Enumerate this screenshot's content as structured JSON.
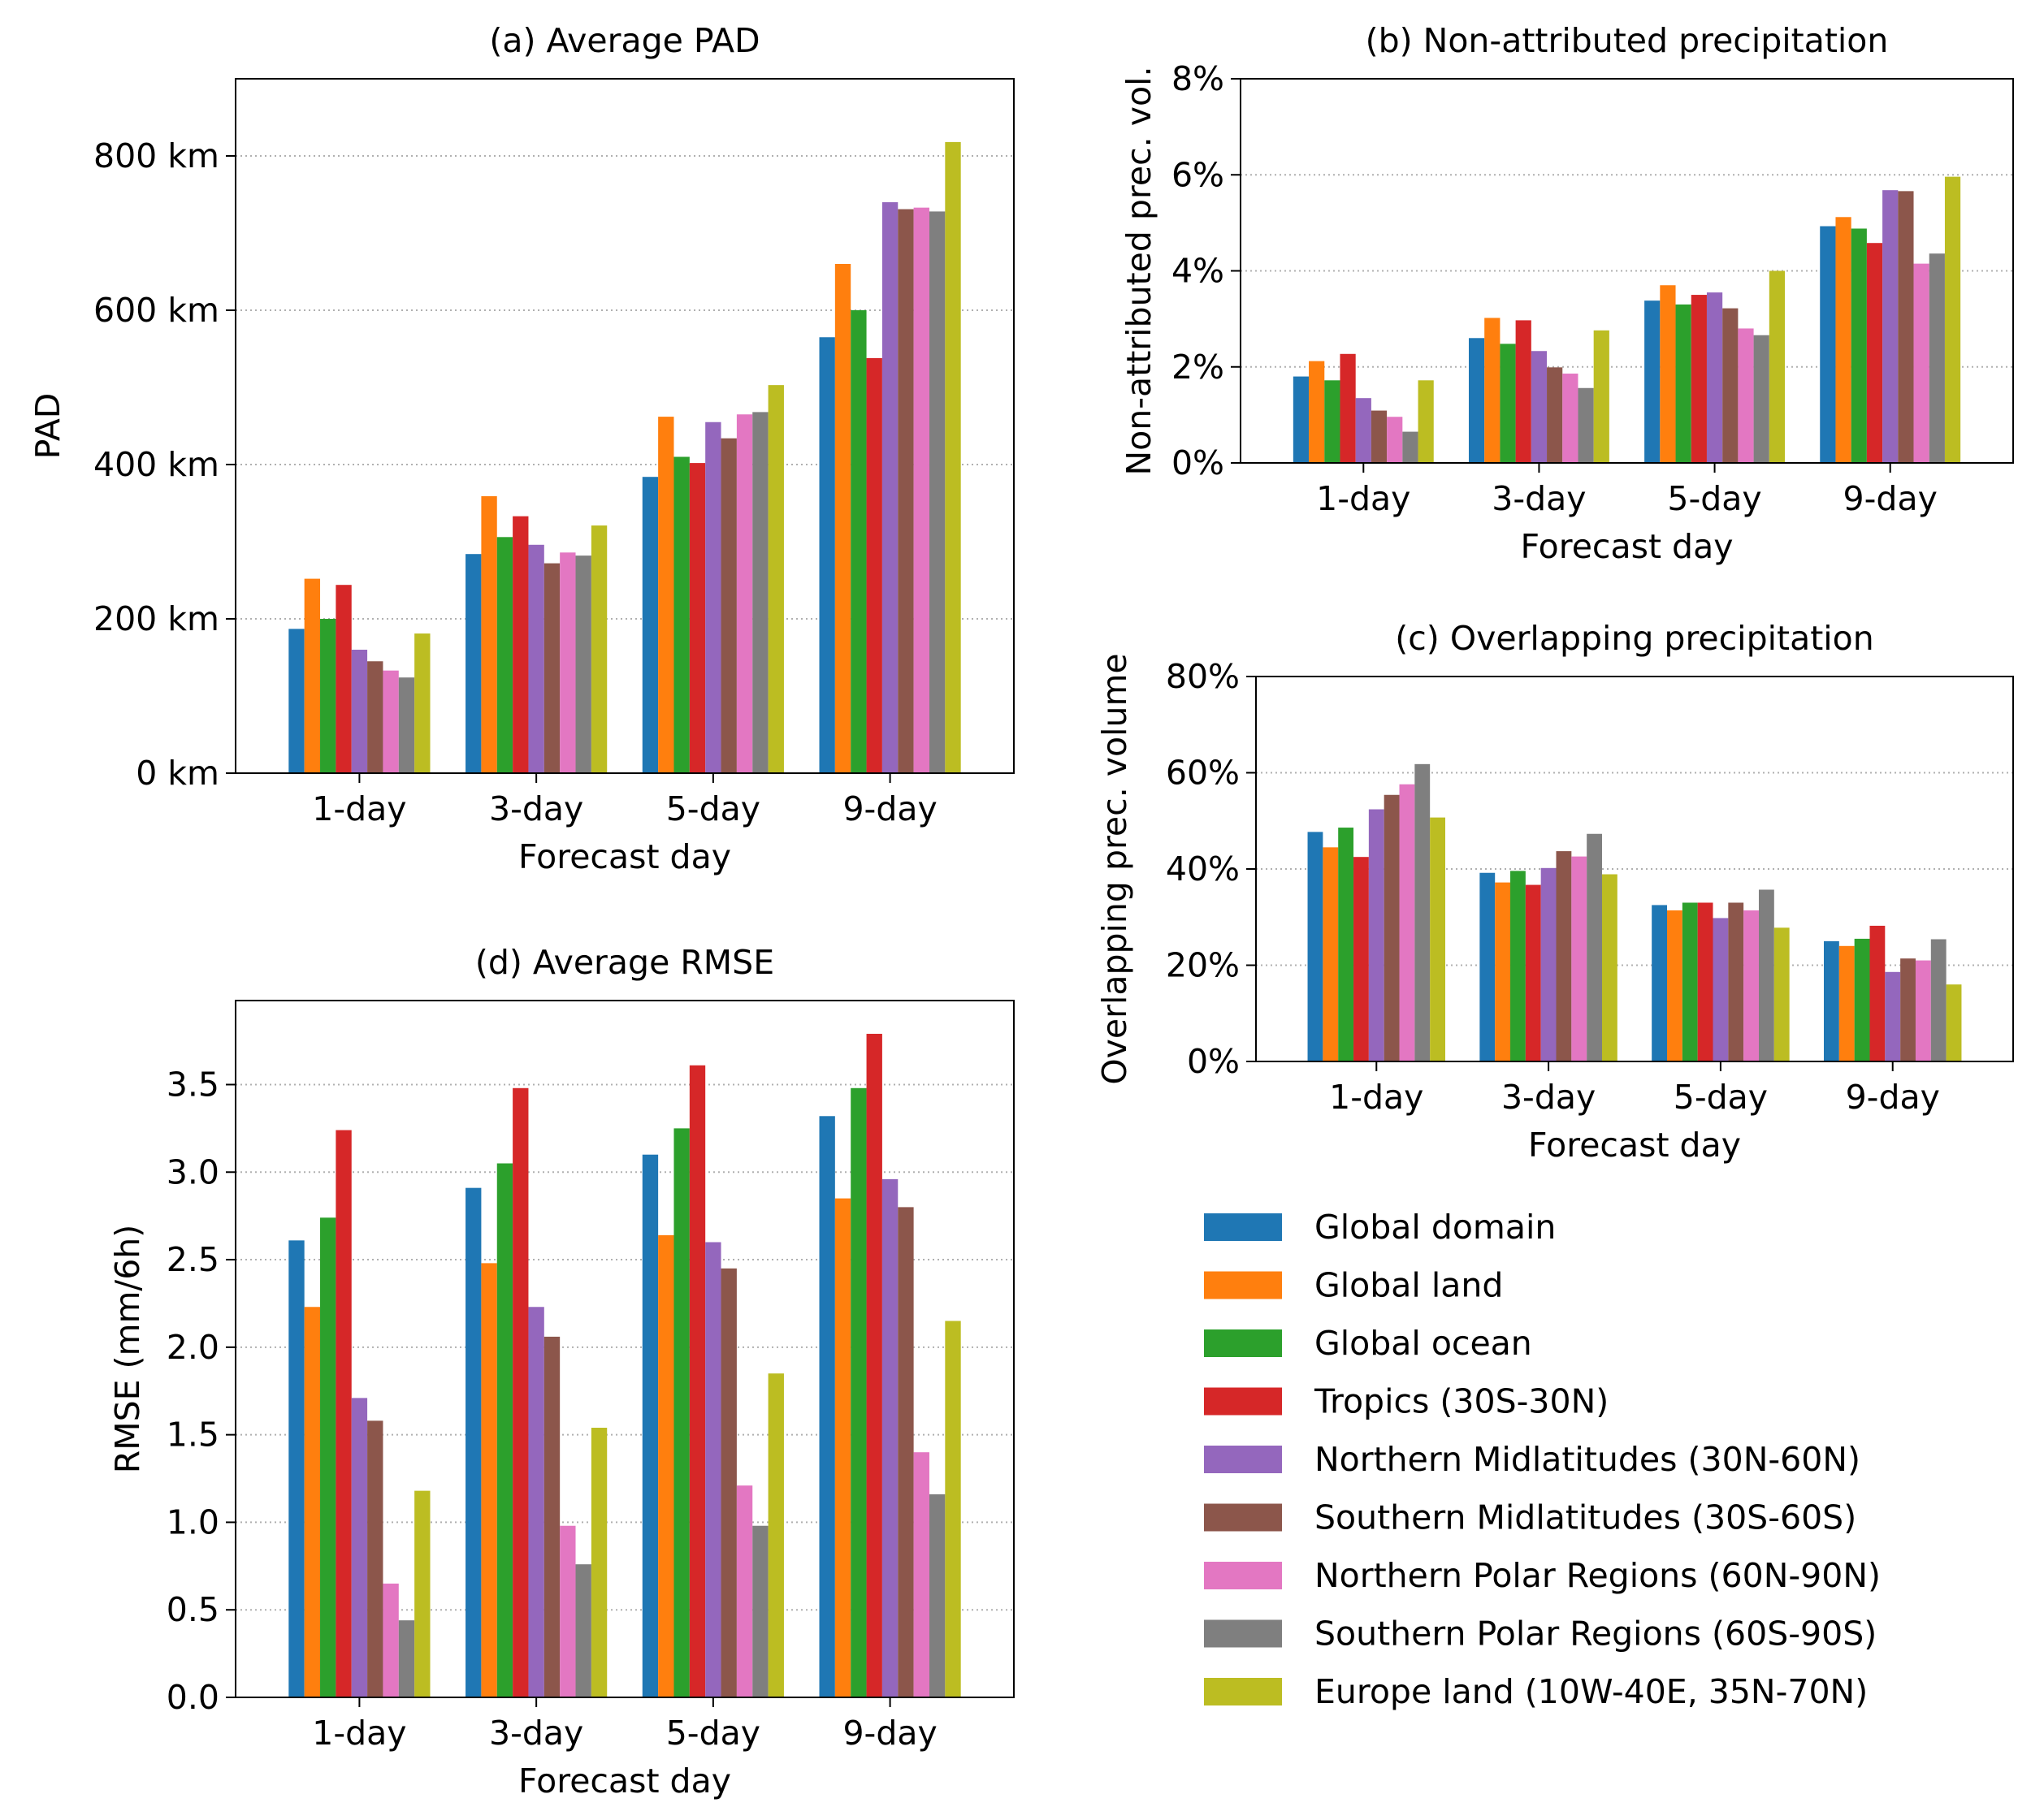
{
  "series_colors": [
    "#1f77b4",
    "#ff7f0e",
    "#2ca02c",
    "#d62728",
    "#9467bd",
    "#8c564b",
    "#e377c2",
    "#7f7f7f",
    "#bcbd22"
  ],
  "legend": [
    "Global domain",
    "Global land",
    "Global ocean",
    "Tropics (30S-30N)",
    "Northern Midlatitudes (30N-60N)",
    "Southern Midlatitudes (30S-60S)",
    "Northern Polar Regions (60N-90N)",
    "Southern Polar Regions (60S-90S)",
    "Europe land (10W-40E, 35N-70N)"
  ],
  "chart_data": [
    {
      "id": "a",
      "type": "bar",
      "title": "(a) Average PAD",
      "xlabel": "Forecast day",
      "ylabel": "PAD",
      "categories": [
        "1-day",
        "3-day",
        "5-day",
        "9-day"
      ],
      "ylim": [
        0,
        900
      ],
      "yticks": [
        0,
        200,
        400,
        600,
        800
      ],
      "ytick_labels": [
        "0 km",
        "200 km",
        "400 km",
        "600 km",
        "800 km"
      ],
      "grid": "y-dotted",
      "series": [
        {
          "values": [
            187,
            284,
            384,
            565
          ]
        },
        {
          "values": [
            252,
            359,
            462,
            660
          ]
        },
        {
          "values": [
            200,
            306,
            410,
            600
          ]
        },
        {
          "values": [
            244,
            333,
            402,
            538
          ]
        },
        {
          "values": [
            160,
            296,
            455,
            740
          ]
        },
        {
          "values": [
            145,
            272,
            434,
            731
          ]
        },
        {
          "values": [
            133,
            286,
            465,
            733
          ]
        },
        {
          "values": [
            124,
            282,
            468,
            728
          ]
        },
        {
          "values": [
            181,
            321,
            503,
            818
          ]
        }
      ]
    },
    {
      "id": "b",
      "type": "bar",
      "title": "(b) Non-attributed precipitation",
      "xlabel": "Forecast day",
      "ylabel": "Non-attributed prec. vol.",
      "categories": [
        "1-day",
        "3-day",
        "5-day",
        "9-day"
      ],
      "ylim": [
        0,
        8
      ],
      "yticks": [
        0,
        2,
        4,
        6,
        8
      ],
      "ytick_labels": [
        "0%",
        "2%",
        "4%",
        "6%",
        "8%"
      ],
      "grid": "y-dotted",
      "series": [
        {
          "values": [
            1.8,
            2.6,
            3.38,
            4.93
          ]
        },
        {
          "values": [
            2.12,
            3.02,
            3.7,
            5.12
          ]
        },
        {
          "values": [
            1.72,
            2.48,
            3.3,
            4.88
          ]
        },
        {
          "values": [
            2.27,
            2.97,
            3.5,
            4.58
          ]
        },
        {
          "values": [
            1.35,
            2.33,
            3.55,
            5.68
          ]
        },
        {
          "values": [
            1.09,
            1.99,
            3.22,
            5.66
          ]
        },
        {
          "values": [
            0.96,
            1.86,
            2.8,
            4.15
          ]
        },
        {
          "values": [
            0.65,
            1.56,
            2.66,
            4.36
          ]
        },
        {
          "values": [
            1.72,
            2.76,
            4.0,
            5.96
          ]
        }
      ]
    },
    {
      "id": "c",
      "type": "bar",
      "title": "(c) Overlapping precipitation",
      "xlabel": "Forecast day",
      "ylabel": "Overlapping prec. volume",
      "categories": [
        "1-day",
        "3-day",
        "5-day",
        "9-day"
      ],
      "ylim": [
        0,
        80
      ],
      "yticks": [
        0,
        20,
        40,
        60,
        80
      ],
      "ytick_labels": [
        "0%",
        "20%",
        "40%",
        "60%",
        "80%"
      ],
      "grid": "y-dotted",
      "series": [
        {
          "values": [
            47.7,
            39.2,
            32.5,
            25.0
          ]
        },
        {
          "values": [
            44.5,
            37.2,
            31.4,
            24.0
          ]
        },
        {
          "values": [
            48.6,
            39.6,
            33.0,
            25.5
          ]
        },
        {
          "values": [
            42.5,
            36.7,
            33.0,
            28.2
          ]
        },
        {
          "values": [
            52.4,
            40.2,
            29.8,
            18.6
          ]
        },
        {
          "values": [
            55.4,
            43.7,
            33.0,
            21.4
          ]
        },
        {
          "values": [
            57.6,
            42.6,
            31.4,
            21.0
          ]
        },
        {
          "values": [
            61.8,
            47.3,
            35.7,
            25.4
          ]
        },
        {
          "values": [
            50.7,
            38.9,
            27.8,
            16.0
          ]
        }
      ]
    },
    {
      "id": "d",
      "type": "bar",
      "title": "(d) Average RMSE",
      "xlabel": "Forecast day",
      "ylabel": "RMSE (mm/6h)",
      "categories": [
        "1-day",
        "3-day",
        "5-day",
        "9-day"
      ],
      "ylim": [
        0,
        3.98
      ],
      "yticks": [
        0,
        0.5,
        1.0,
        1.5,
        2.0,
        2.5,
        3.0,
        3.5
      ],
      "ytick_labels": [
        "0.0",
        "0.5",
        "1.0",
        "1.5",
        "2.0",
        "2.5",
        "3.0",
        "3.5"
      ],
      "grid": "y-dotted",
      "series": [
        {
          "values": [
            2.61,
            2.91,
            3.1,
            3.32
          ]
        },
        {
          "values": [
            2.23,
            2.48,
            2.64,
            2.85
          ]
        },
        {
          "values": [
            2.74,
            3.05,
            3.25,
            3.48
          ]
        },
        {
          "values": [
            3.24,
            3.48,
            3.61,
            3.79
          ]
        },
        {
          "values": [
            1.71,
            2.23,
            2.6,
            2.96
          ]
        },
        {
          "values": [
            1.58,
            2.06,
            2.45,
            2.8
          ]
        },
        {
          "values": [
            0.65,
            0.98,
            1.21,
            1.4
          ]
        },
        {
          "values": [
            0.44,
            0.76,
            0.98,
            1.16
          ]
        },
        {
          "values": [
            1.18,
            1.54,
            1.85,
            2.15
          ]
        }
      ]
    }
  ]
}
